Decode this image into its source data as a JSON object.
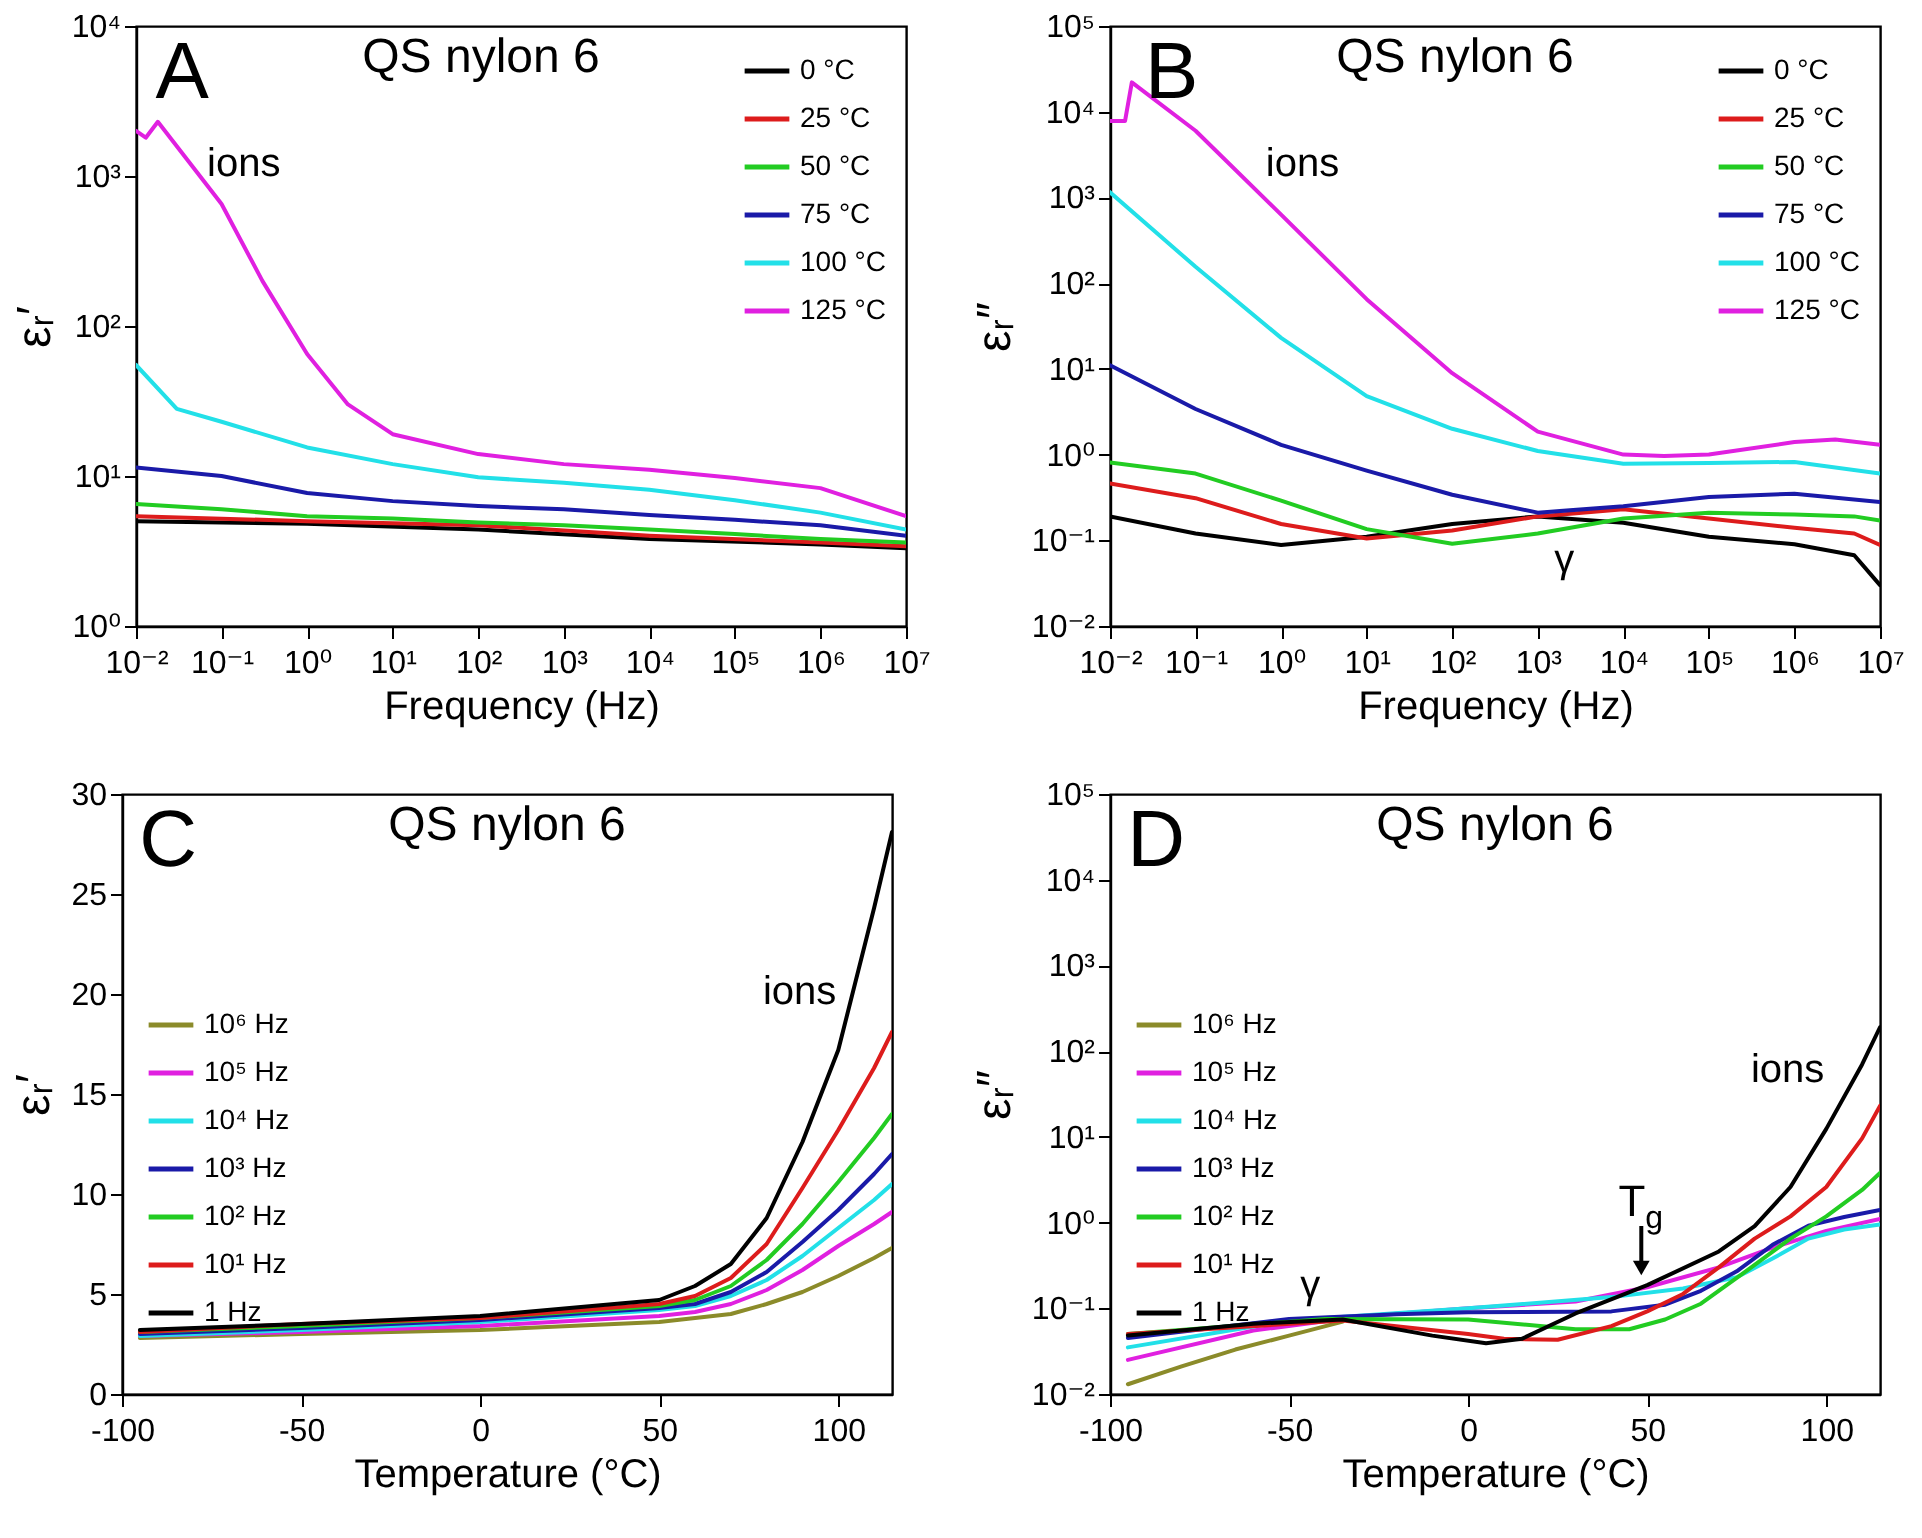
{
  "chart_data": [
    {
      "type": "line",
      "title": "QS nylon 6",
      "xlabel": "Frequency (Hz)",
      "ylabel": "εᵣ′",
      "log": "xy",
      "xlim": [
        0.01,
        10000000
      ],
      "ylim": [
        1,
        10000
      ],
      "xticks": [
        {
          "value": 0.01,
          "label": "10⁻²"
        },
        {
          "value": 0.1,
          "label": "10⁻¹"
        },
        {
          "value": 1,
          "label": "10⁰"
        },
        {
          "value": 10,
          "label": "10¹"
        },
        {
          "value": 100,
          "label": "10²"
        },
        {
          "value": 1000,
          "label": "10³"
        },
        {
          "value": 10000,
          "label": "10⁴"
        },
        {
          "value": 100000,
          "label": "10⁵"
        },
        {
          "value": 1000000,
          "label": "10⁶"
        },
        {
          "value": 10000000,
          "label": "10⁷"
        }
      ],
      "yticks": [
        {
          "value": 1,
          "label": "10⁰"
        },
        {
          "value": 10,
          "label": "10¹"
        },
        {
          "value": 100,
          "label": "10²"
        },
        {
          "value": 1000,
          "label": "10³"
        },
        {
          "value": 10000,
          "label": "10⁴"
        }
      ],
      "legend": "top right",
      "grid": false,
      "annotations": [
        "A",
        "ions"
      ],
      "series": [
        {
          "name": "0 °C",
          "color": "#000000",
          "x": [
            0.01,
            1,
            100,
            10000,
            1000000,
            10000000
          ],
          "values": [
            5.0,
            4.8,
            4.4,
            3.8,
            3.5,
            3.3
          ]
        },
        {
          "name": "25 °C",
          "color": "#dd1c1c",
          "x": [
            0.01,
            1,
            100,
            10000,
            1000000,
            10000000
          ],
          "values": [
            5.4,
            5.0,
            4.7,
            4.0,
            3.6,
            3.4
          ]
        },
        {
          "name": "50 °C",
          "color": "#22cc22",
          "x": [
            0.01,
            0.1,
            1,
            10,
            100,
            1000,
            10000,
            100000,
            1000000,
            10000000
          ],
          "values": [
            6.5,
            6.0,
            5.4,
            5.2,
            4.9,
            4.7,
            4.4,
            4.1,
            3.8,
            3.6
          ]
        },
        {
          "name": "75 °C",
          "color": "#1a1aa8",
          "x": [
            0.01,
            0.1,
            1,
            10,
            100,
            1000,
            10000,
            100000,
            1000000,
            10000000
          ],
          "values": [
            11.4,
            10,
            7.7,
            6.8,
            6.3,
            6.0,
            5.5,
            5.1,
            4.7,
            4.0
          ]
        },
        {
          "name": "100 °C",
          "color": "#22e0e8",
          "x": [
            0.01,
            0.03,
            0.1,
            1,
            10,
            100,
            1000,
            10000,
            100000,
            1000000,
            10000000
          ],
          "values": [
            55,
            28,
            23,
            15.5,
            12,
            9.8,
            9,
            8.1,
            6.9,
            5.7,
            4.4
          ]
        },
        {
          "name": "125 °C",
          "color": "#e020e0",
          "x": [
            0.01,
            0.013,
            0.018,
            0.1,
            0.3,
            1,
            3,
            10,
            100,
            1000,
            10000,
            100000,
            1000000,
            10000000
          ],
          "values": [
            2000,
            1800,
            2300,
            650,
            200,
            65,
            30,
            19,
            14,
            12,
            11,
            9.7,
            8.3,
            5.4
          ]
        }
      ]
    },
    {
      "type": "line",
      "title": "QS nylon 6",
      "xlabel": "Frequency (Hz)",
      "ylabel": "εᵣ″",
      "log": "xy",
      "xlim": [
        0.01,
        10000000
      ],
      "ylim": [
        0.01,
        100000
      ],
      "xticks": [
        {
          "value": 0.01,
          "label": "10⁻²"
        },
        {
          "value": 0.1,
          "label": "10⁻¹"
        },
        {
          "value": 1,
          "label": "10⁰"
        },
        {
          "value": 10,
          "label": "10¹"
        },
        {
          "value": 100,
          "label": "10²"
        },
        {
          "value": 1000,
          "label": "10³"
        },
        {
          "value": 10000,
          "label": "10⁴"
        },
        {
          "value": 100000,
          "label": "10⁵"
        },
        {
          "value": 1000000,
          "label": "10⁶"
        },
        {
          "value": 10000000,
          "label": "10⁷"
        }
      ],
      "yticks": [
        {
          "value": 0.01,
          "label": "10⁻²"
        },
        {
          "value": 0.1,
          "label": "10⁻¹"
        },
        {
          "value": 1,
          "label": "10⁰"
        },
        {
          "value": 10,
          "label": "10¹"
        },
        {
          "value": 100,
          "label": "10²"
        },
        {
          "value": 1000,
          "label": "10³"
        },
        {
          "value": 10000,
          "label": "10⁴"
        },
        {
          "value": 100000,
          "label": "10⁵"
        }
      ],
      "legend": "top right",
      "grid": false,
      "annotations": [
        "B",
        "ions",
        "γ"
      ],
      "series": [
        {
          "name": "0 °C",
          "color": "#000000",
          "x": [
            0.01,
            0.1,
            1,
            10,
            100,
            1000,
            10000,
            100000,
            1000000,
            5000000,
            10000000
          ],
          "values": [
            0.19,
            0.12,
            0.088,
            0.11,
            0.155,
            0.19,
            0.16,
            0.11,
            0.09,
            0.067,
            0.03
          ]
        },
        {
          "name": "25 °C",
          "color": "#dd1c1c",
          "x": [
            0.01,
            0.1,
            1,
            10,
            100,
            1000,
            10000,
            100000,
            1000000,
            5000000,
            10000000
          ],
          "values": [
            0.46,
            0.31,
            0.155,
            0.105,
            0.13,
            0.19,
            0.23,
            0.18,
            0.14,
            0.12,
            0.088
          ]
        },
        {
          "name": "50 °C",
          "color": "#22cc22",
          "x": [
            0.01,
            0.1,
            1,
            10,
            100,
            1000,
            10000,
            100000,
            1000000,
            5000000,
            10000000
          ],
          "values": [
            0.81,
            0.6,
            0.29,
            0.135,
            0.091,
            0.12,
            0.18,
            0.21,
            0.2,
            0.19,
            0.17
          ]
        },
        {
          "name": "75 °C",
          "color": "#1a1aa8",
          "x": [
            0.01,
            0.1,
            1,
            10,
            100,
            1000,
            10000,
            100000,
            1000000,
            10000000
          ],
          "values": [
            11,
            3.4,
            1.3,
            0.65,
            0.34,
            0.21,
            0.25,
            0.32,
            0.35,
            0.28
          ]
        },
        {
          "name": "100 °C",
          "color": "#22e0e8",
          "x": [
            0.01,
            0.1,
            1,
            10,
            100,
            1000,
            10000,
            100000,
            1000000,
            10000000
          ],
          "values": [
            1150,
            155,
            23,
            4.8,
            2.0,
            1.1,
            0.78,
            0.8,
            0.82,
            0.6
          ]
        },
        {
          "name": "125 °C",
          "color": "#e020e0",
          "x": [
            0.01,
            0.015,
            0.018,
            0.1,
            1,
            10,
            100,
            1000,
            10000,
            30000,
            100000,
            1000000,
            3000000,
            10000000
          ],
          "values": [
            7800,
            7800,
            22000,
            6000,
            630,
            65,
            8.9,
            1.85,
            1.0,
            0.96,
            1.0,
            1.4,
            1.5,
            1.3
          ]
        }
      ]
    },
    {
      "type": "line",
      "title": "QS nylon 6",
      "xlabel": "Temperature (°C)",
      "ylabel": "εᵣ′",
      "xlim": [
        -100,
        115
      ],
      "ylim": [
        0,
        30
      ],
      "xticks": [
        -100,
        -50,
        0,
        50,
        100
      ],
      "yticks": [
        0,
        5,
        10,
        15,
        20,
        25,
        30
      ],
      "legend": "left",
      "grid": false,
      "annotations": [
        "C",
        "ions"
      ],
      "x": [
        -95,
        -50,
        0,
        50,
        60,
        70,
        80,
        90,
        100,
        110,
        115
      ],
      "series": [
        {
          "name": "10⁶ Hz",
          "color": "#8b8b2a",
          "values": [
            2.8,
            3.0,
            3.2,
            3.6,
            3.8,
            4.0,
            4.5,
            5.1,
            5.9,
            6.8,
            7.3
          ]
        },
        {
          "name": "10⁵ Hz",
          "color": "#e020e0",
          "values": [
            2.9,
            3.1,
            3.4,
            3.9,
            4.1,
            4.5,
            5.2,
            6.2,
            7.4,
            8.5,
            9.1
          ]
        },
        {
          "name": "10⁴ Hz",
          "color": "#22e0e8",
          "values": [
            2.9,
            3.2,
            3.6,
            4.2,
            4.4,
            4.9,
            5.7,
            6.9,
            8.3,
            9.7,
            10.5
          ]
        },
        {
          "name": "10³ Hz",
          "color": "#1a1aa8",
          "values": [
            3.0,
            3.3,
            3.7,
            4.3,
            4.5,
            5.1,
            6.1,
            7.6,
            9.2,
            11,
            12
          ]
        },
        {
          "name": "10² Hz",
          "color": "#22cc22",
          "values": [
            3.1,
            3.4,
            3.8,
            4.4,
            4.7,
            5.4,
            6.7,
            8.5,
            10.6,
            12.8,
            14
          ]
        },
        {
          "name": "10¹ Hz",
          "color": "#dd1c1c",
          "values": [
            3.1,
            3.5,
            3.8,
            4.5,
            4.9,
            5.8,
            7.5,
            10.3,
            13.2,
            16.3,
            18.1
          ]
        },
        {
          "name": "1 Hz",
          "color": "#000000",
          "values": [
            3.2,
            3.5,
            3.9,
            4.7,
            5.4,
            6.5,
            8.8,
            12.6,
            17.2,
            24.3,
            28.1
          ]
        }
      ]
    },
    {
      "type": "line",
      "title": "QS nylon 6",
      "xlabel": "Temperature (°C)",
      "ylabel": "εᵣ″",
      "log": true,
      "xlim": [
        -100,
        115
      ],
      "ylim": [
        0.01,
        100000
      ],
      "xticks": [
        -100,
        -50,
        0,
        50,
        100
      ],
      "yticks": [
        {
          "value": 0.01,
          "label": "10⁻²"
        },
        {
          "value": 0.1,
          "label": "10⁻¹"
        },
        {
          "value": 1,
          "label": "10⁰"
        },
        {
          "value": 10,
          "label": "10¹"
        },
        {
          "value": 100,
          "label": "10²"
        },
        {
          "value": 1000,
          "label": "10³"
        },
        {
          "value": 10000,
          "label": "10⁴"
        },
        {
          "value": 100000,
          "label": "10⁵"
        }
      ],
      "legend": "left",
      "grid": false,
      "annotations": [
        "D",
        "ions",
        "γ",
        "T$_{g}$"
      ],
      "series": [
        {
          "name": "10⁶ Hz",
          "color": "#8b8b2a",
          "x": [
            -95,
            -80,
            -65,
            -50,
            -35
          ],
          "values": [
            0.013,
            0.021,
            0.033,
            0.048,
            0.07
          ]
        },
        {
          "name": "10⁵ Hz",
          "color": "#e020e0",
          "x": [
            -95,
            -60,
            -30,
            0,
            30,
            50,
            70,
            85,
            100,
            115
          ],
          "values": [
            0.025,
            0.055,
            0.08,
            0.1,
            0.12,
            0.176,
            0.3,
            0.51,
            0.8,
            1.1
          ]
        },
        {
          "name": "10⁴ Hz",
          "color": "#22e0e8",
          "x": [
            -95,
            -50,
            0,
            40,
            60,
            75,
            85,
            95,
            105,
            115
          ],
          "values": [
            0.035,
            0.072,
            0.1,
            0.135,
            0.17,
            0.23,
            0.38,
            0.65,
            0.83,
            0.95
          ]
        },
        {
          "name": "10³ Hz",
          "color": "#1a1aa8",
          "x": [
            -95,
            -50,
            -20,
            0,
            40,
            55,
            65,
            75,
            85,
            95,
            105,
            115
          ],
          "values": [
            0.045,
            0.075,
            0.085,
            0.09,
            0.092,
            0.11,
            0.16,
            0.27,
            0.55,
            0.92,
            1.16,
            1.4
          ]
        },
        {
          "name": "10² Hz",
          "color": "#22cc22",
          "x": [
            -95,
            -40,
            0,
            30,
            45,
            55,
            65,
            80,
            90,
            100,
            110,
            115
          ],
          "values": [
            0.05,
            0.075,
            0.074,
            0.057,
            0.057,
            0.074,
            0.113,
            0.32,
            0.65,
            1.18,
            2.4,
            3.8
          ]
        },
        {
          "name": "10¹ Hz",
          "color": "#dd1c1c",
          "x": [
            -95,
            -35,
            0,
            10,
            25,
            40,
            50,
            60,
            70,
            80,
            90,
            100,
            110,
            115
          ],
          "values": [
            0.05,
            0.072,
            0.05,
            0.044,
            0.043,
            0.062,
            0.092,
            0.147,
            0.3,
            0.65,
            1.18,
            2.6,
            9.6,
            23
          ]
        },
        {
          "name": "1 Hz",
          "color": "#000000",
          "x": [
            -95,
            -60,
            -35,
            -10,
            5,
            15,
            30,
            50,
            70,
            80,
            90,
            100,
            110,
            115
          ],
          "values": [
            0.048,
            0.066,
            0.074,
            0.048,
            0.039,
            0.044,
            0.087,
            0.186,
            0.46,
            0.91,
            2.6,
            12.4,
            70,
            190
          ]
        }
      ]
    }
  ]
}
